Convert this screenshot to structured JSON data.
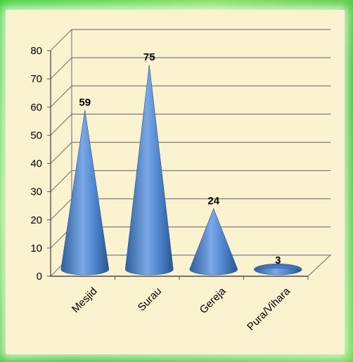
{
  "chart_data": {
    "type": "bar",
    "style": "3d-cone",
    "categories": [
      "Mesjid",
      "Surau",
      "Gereja",
      "Pura/Vihara"
    ],
    "values": [
      59,
      75,
      24,
      3
    ],
    "data_labels": [
      "59",
      "75",
      "24",
      "3"
    ],
    "yticks": [
      "0",
      "10",
      "20",
      "30",
      "40",
      "50",
      "60",
      "70",
      "80"
    ],
    "ylim": [
      0,
      80
    ],
    "grid": true,
    "title": "",
    "xlabel": "",
    "ylabel": ""
  },
  "colors": {
    "cone_dark": "#2f5f9e",
    "cone_mid": "#4f86cf",
    "cone_light": "#a9c8f2",
    "panel": "#fbf2cf",
    "frame": "#4fd43f"
  }
}
